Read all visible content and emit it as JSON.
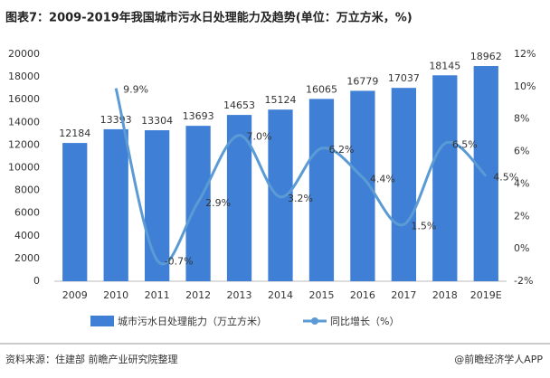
{
  "chart_data": {
    "type": "combo",
    "title": "图表7：2009-2019年我国城市污水日处理能力及趋势(单位：万立方米，%)",
    "categories": [
      "2009",
      "2010",
      "2011",
      "2012",
      "2013",
      "2014",
      "2015",
      "2016",
      "2017",
      "2018",
      "2019E"
    ],
    "series": [
      {
        "name": "城市污水日处理能力（万立方米）",
        "type": "bar",
        "color": "#3f7fd6",
        "values": [
          12184,
          13393,
          13304,
          13693,
          14653,
          15124,
          16065,
          16779,
          17037,
          18145,
          18962
        ]
      },
      {
        "name": "同比增长（%）",
        "type": "line",
        "axis": "y2",
        "color": "#5b9bd5",
        "values": [
          null,
          9.9,
          -0.7,
          2.9,
          7.0,
          3.2,
          6.2,
          4.4,
          1.5,
          6.5,
          4.5
        ],
        "value_labels": [
          null,
          "9.9%",
          "-0.7%",
          "2.9%",
          "7.0%",
          "3.2%",
          "6.2%",
          "4.4%",
          "1.5%",
          "6.5%",
          "4.5%"
        ]
      }
    ],
    "ylim": [
      0,
      20000
    ],
    "yticks": [
      0,
      2000,
      4000,
      6000,
      8000,
      10000,
      12000,
      14000,
      16000,
      18000,
      20000
    ],
    "y2lim": [
      -2,
      12
    ],
    "y2ticks": [
      {
        "value": -2,
        "label": "-2%"
      },
      {
        "value": 0,
        "label": "0%"
      },
      {
        "value": 2,
        "label": "2%"
      },
      {
        "value": 4,
        "label": "4%"
      },
      {
        "value": 6,
        "label": "6%"
      },
      {
        "value": 8,
        "label": "8%"
      },
      {
        "value": 10,
        "label": "10%"
      },
      {
        "value": 12,
        "label": "12%"
      }
    ],
    "source": "资料来源：住建部 前瞻产业研究院整理",
    "credit": "@前瞻经济学人APP"
  }
}
